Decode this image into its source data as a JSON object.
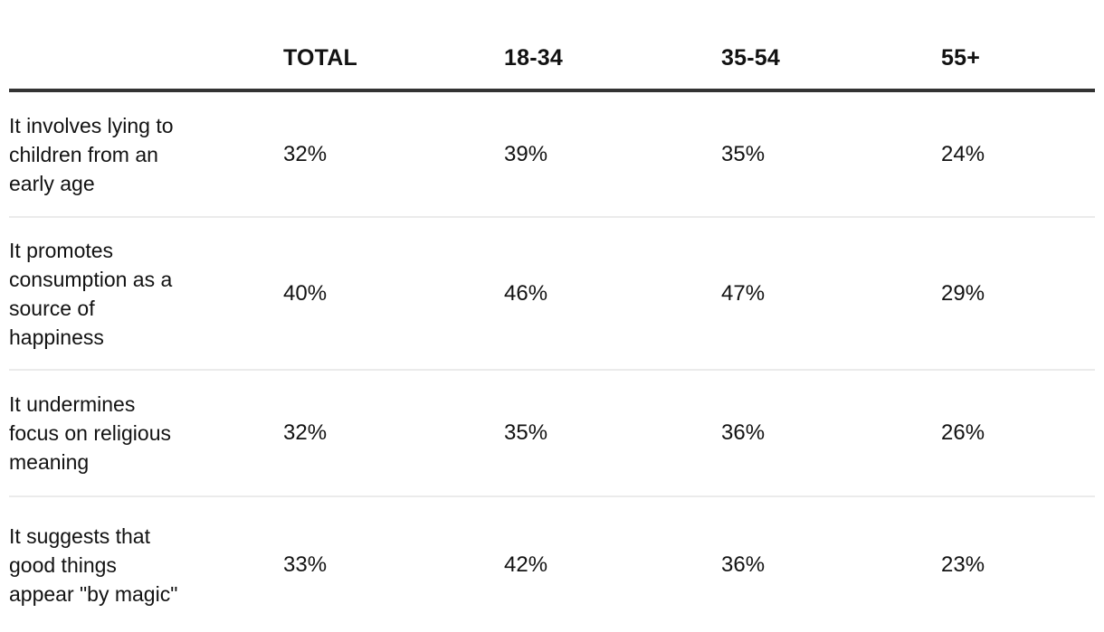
{
  "chart_data": {
    "type": "table",
    "title": "",
    "columns": [
      "TOTAL",
      "18-34",
      "35-54",
      "55+"
    ],
    "rows": [
      {
        "label": "It involves lying to children from an early age",
        "values": [
          "32%",
          "39%",
          "35%",
          "24%"
        ]
      },
      {
        "label": "It promotes consumption as a source of happiness",
        "values": [
          "40%",
          "46%",
          "47%",
          "29%"
        ]
      },
      {
        "label": "It undermines focus on religious meaning",
        "values": [
          "32%",
          "35%",
          "36%",
          "26%"
        ]
      },
      {
        "label": "It suggests that good things appear \"by magic\"",
        "values": [
          "33%",
          "42%",
          "36%",
          "23%"
        ]
      }
    ]
  },
  "table": {
    "headers": {
      "row_label": "",
      "total": "TOTAL",
      "age_18_34": "18-34",
      "age_35_54": "35-54",
      "age_55_plus": "55+"
    },
    "rows": [
      {
        "label": "It involves lying to\nchildren from an\nearly age",
        "values": [
          "32%",
          "39%",
          "35%",
          "24%"
        ]
      },
      {
        "label": "It promotes\nconsumption as a\nsource of\nhappiness",
        "values": [
          "40%",
          "46%",
          "47%",
          "29%"
        ]
      },
      {
        "label": "It undermines\nfocus on religious\nmeaning",
        "values": [
          "32%",
          "35%",
          "36%",
          "26%"
        ]
      },
      {
        "label": "It suggests that\ngood things\nappear \"by magic\"",
        "values": [
          "33%",
          "42%",
          "36%",
          "23%"
        ]
      }
    ]
  },
  "colors": {
    "background": "#ffffff",
    "text": "#121212",
    "header_rule": "#333333",
    "row_divider": "#ebebeb"
  }
}
